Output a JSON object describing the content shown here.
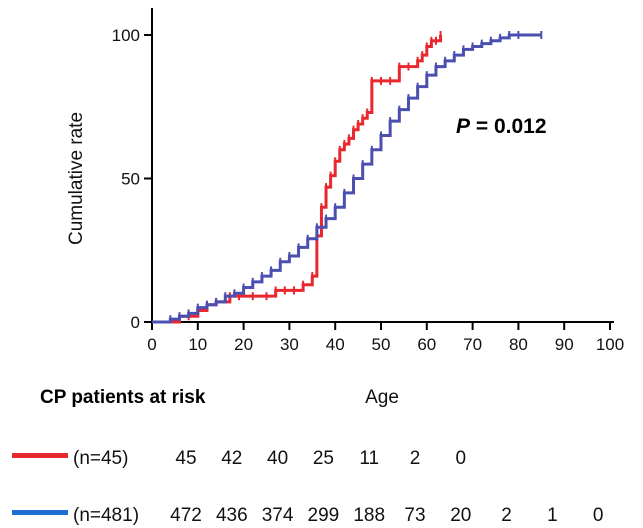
{
  "chart_data": {
    "type": "line",
    "step": true,
    "xlabel": "Age",
    "ylabel": "Cumulative rate",
    "xlim": [
      0,
      100
    ],
    "ylim": [
      0,
      100
    ],
    "xticks": [
      "0",
      "10",
      "20",
      "30",
      "40",
      "50",
      "60",
      "70",
      "80",
      "90",
      "100"
    ],
    "yticks": [
      "0",
      "50",
      "100"
    ],
    "annotation": {
      "italic": "P",
      "text": " = 0.012"
    },
    "series": [
      {
        "color": "#e8282e",
        "x": [
          0,
          6,
          8,
          10,
          12,
          14,
          17,
          19,
          22,
          25,
          27,
          29,
          31,
          33,
          35,
          36,
          37,
          38,
          39,
          40,
          41,
          42,
          43,
          44,
          45,
          46,
          47,
          48,
          50,
          52,
          54,
          56,
          58,
          59,
          60,
          61,
          62,
          63
        ],
        "y": [
          0,
          2,
          2,
          4,
          6,
          7,
          9,
          9,
          9,
          9,
          11,
          11,
          11,
          13,
          16,
          30,
          40,
          47,
          51,
          56,
          60,
          62,
          64,
          67,
          69,
          71,
          73,
          84,
          84,
          84,
          89,
          89,
          91,
          93,
          96,
          98,
          98,
          100
        ]
      },
      {
        "color": "#4a4fb0",
        "x": [
          0,
          4,
          6,
          8,
          10,
          12,
          14,
          16,
          18,
          20,
          22,
          24,
          26,
          28,
          30,
          32,
          34,
          36,
          38,
          40,
          42,
          44,
          46,
          48,
          50,
          52,
          54,
          56,
          58,
          60,
          62,
          64,
          66,
          68,
          70,
          72,
          74,
          76,
          78,
          80,
          85
        ],
        "y": [
          0,
          1,
          2,
          3,
          5,
          6,
          7,
          9,
          10,
          12,
          14,
          16,
          18,
          21,
          23,
          26,
          29,
          33,
          36,
          40,
          45,
          50,
          55,
          60,
          65,
          70,
          74,
          78,
          82,
          86,
          89,
          91,
          93,
          95,
          96,
          97,
          98,
          99,
          100,
          100,
          100
        ]
      }
    ]
  },
  "risk_table": {
    "title": "CP patients at risk",
    "rows": [
      {
        "color": "#e8282e",
        "label": "(n=45)",
        "values": [
          "45",
          "42",
          "40",
          "25",
          "11",
          "2",
          "0"
        ]
      },
      {
        "color": "#1e6fd1",
        "label": "(n=481)",
        "values": [
          "472",
          "436",
          "374",
          "299",
          "188",
          "73",
          "20",
          "2",
          "1",
          "0"
        ]
      }
    ]
  }
}
